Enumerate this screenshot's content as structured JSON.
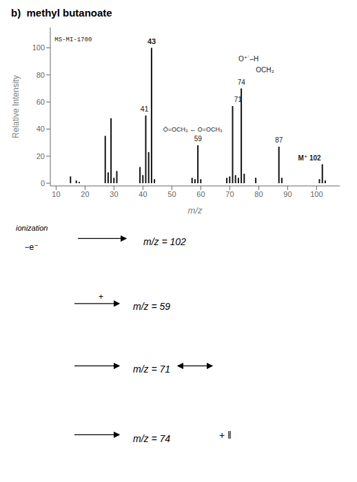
{
  "chart_data": {
    "type": "bar",
    "title": "b)  methyl butanoate",
    "xlabel": "m/z",
    "ylabel": "Relative Intensity",
    "x": [
      15,
      17,
      18,
      27,
      28,
      29,
      30,
      31,
      39,
      40,
      41,
      42,
      43,
      44,
      57,
      58,
      59,
      60,
      69,
      70,
      71,
      72,
      73,
      74,
      75,
      79,
      87,
      88,
      101,
      102,
      103
    ],
    "values": [
      5,
      2,
      1,
      35,
      8,
      48,
      4,
      9,
      12,
      6,
      50,
      23,
      100,
      3,
      4,
      3,
      28,
      3,
      4,
      5,
      57,
      6,
      4,
      70,
      7,
      4,
      27,
      4,
      3,
      14,
      2
    ],
    "color": "#111111",
    "xlim": [
      8,
      108
    ],
    "ylim": [
      -2,
      115
    ],
    "xticks": [
      10,
      20,
      30,
      40,
      50,
      60,
      70,
      80,
      90,
      100
    ],
    "yticks": [
      0,
      20,
      40,
      60,
      80,
      100
    ],
    "grid": false,
    "annotations": [
      {
        "text": "MS-MI-1700",
        "x": 9.5,
        "y": 105
      },
      {
        "text": "43",
        "x": 43,
        "y": 103
      },
      {
        "text": "41",
        "x": 40.5,
        "y": 53
      },
      {
        "text": "59",
        "x": 59,
        "y": 31
      },
      {
        "text": "71",
        "x": 71.5,
        "y": 60
      },
      {
        "text": "74",
        "x": 74,
        "y": 73
      },
      {
        "text": "87",
        "x": 87,
        "y": 30
      },
      {
        "text": "M⁺ 102",
        "x": 101.5,
        "y": 17
      },
      {
        "text": "OCH₃",
        "x": 79,
        "y": 82
      },
      {
        "text": "O⁺˙–H",
        "x": 73,
        "y": 90
      },
      {
        "text": "Ȯ=OCH₃ ↔ O=OCH₃",
        "x": 47,
        "y": 38
      },
      {
        "text": "ionization"
      },
      {
        "text": "−e⁻"
      },
      {
        "text": "m/z = 102"
      },
      {
        "text": "+"
      },
      {
        "text": "m/z = 59"
      },
      {
        "text": "m/z = 71"
      },
      {
        "text": "m/z = 74"
      },
      {
        "text": "+ ‖"
      }
    ]
  }
}
